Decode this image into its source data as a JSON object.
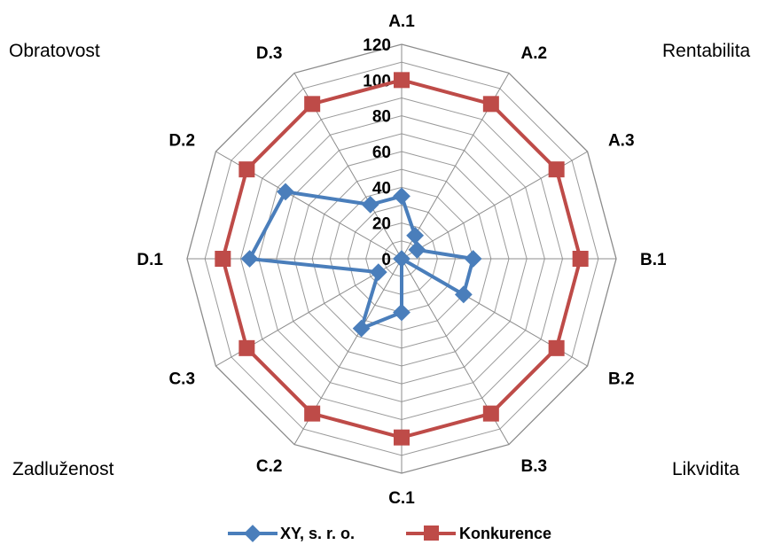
{
  "chart_data": {
    "type": "radar",
    "categories": [
      "A.1",
      "A.2",
      "A.3",
      "B.1",
      "B.2",
      "B.3",
      "C.1",
      "C.2",
      "C.3",
      "D.1",
      "D.2",
      "D.3"
    ],
    "series": [
      {
        "name": "XY, s. r. o.",
        "values": [
          35,
          15,
          10,
          40,
          40,
          0,
          30,
          45,
          15,
          85,
          75,
          35
        ],
        "color": "#4a7ebb",
        "marker": "diamond"
      },
      {
        "name": "Konkurence",
        "values": [
          100,
          100,
          100,
          100,
          100,
          100,
          100,
          100,
          100,
          100,
          100,
          100
        ],
        "color": "#be4b48",
        "marker": "square"
      }
    ],
    "rlim": [
      0,
      120
    ],
    "ticks": [
      "0",
      "20",
      "40",
      "60",
      "80",
      "100",
      "120"
    ],
    "grid": true,
    "legend_position": "bottom",
    "group_labels": {
      "top_left": "Obratovost",
      "top_right": "Rentabilita",
      "bottom_left": "Zadluženost",
      "bottom_right": "Likvidita"
    }
  }
}
